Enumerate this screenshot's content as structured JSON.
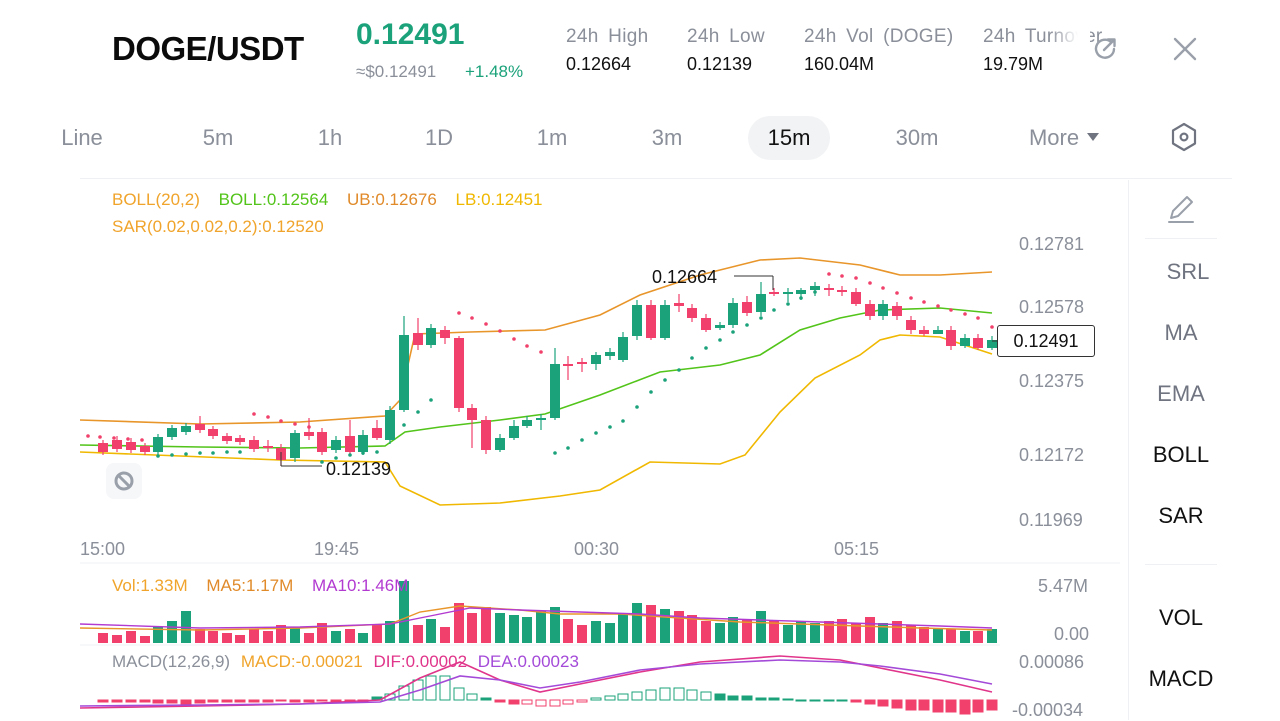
{
  "header": {
    "pair": "DOGE/USDT",
    "last_price": "0.12491",
    "fiat_price": "≈$0.12491",
    "change_pct": "+1.48%",
    "stats": [
      {
        "label": "24h  High",
        "value": "0.12664"
      },
      {
        "label": "24h  Low",
        "value": "0.12139"
      },
      {
        "label": "24h  Vol (DOGE)",
        "value": "160.04M"
      },
      {
        "label": "24h  Turnover",
        "value": "19.79M"
      }
    ],
    "share_icon": "share-icon",
    "close_icon": "close-icon"
  },
  "tabs": {
    "items": [
      "Line",
      "5m",
      "1h",
      "1D",
      "1m",
      "3m",
      "15m",
      "30m",
      "More"
    ],
    "active": "15m",
    "settings_icon": "hexagon-settings-icon"
  },
  "legend": {
    "boll_name": "BOLL(20,2)",
    "boll_mid": "BOLL:0.12564",
    "boll_ub": "UB:0.12676",
    "boll_lb": "LB:0.12451",
    "sar": "SAR(0.02,0.02,0.2):0.12520",
    "vol": "Vol:1.33M",
    "ma5": "MA5:1.17M",
    "ma10": "MA10:1.46M",
    "macd_name": "MACD(12,26,9)",
    "macd": "MACD:-0.00021",
    "dif": "DIF:0.00002",
    "dea": "DEA:0.00023"
  },
  "price_axis": [
    "0.12781",
    "0.12578",
    "0.12375",
    "0.12172",
    "0.11969"
  ],
  "volume_axis": [
    "5.47M",
    "0.00"
  ],
  "macd_axis": [
    "0.00086",
    "-0.00034"
  ],
  "time_axis": [
    "15:00",
    "19:45",
    "00:30",
    "05:15"
  ],
  "markers": {
    "high": "0.12664",
    "low": "0.12139",
    "current": "0.12491"
  },
  "side_panel": {
    "draw_icon": "pencil-icon",
    "items": [
      "SRL",
      "MA",
      "EMA",
      "BOLL",
      "SAR",
      "VOL",
      "MACD"
    ],
    "active": [
      "BOLL",
      "SAR",
      "VOL",
      "MACD"
    ]
  },
  "colors": {
    "up": "#1ba27a",
    "down": "#f0406b",
    "boll_mid": "#52c41a",
    "boll_band": "#f0a42b",
    "sar": "#f0406b",
    "ma10": "#b23ad1",
    "dif": "#e0358a",
    "dea": "#a44ad8"
  },
  "chart_data": {
    "type": "candlestick",
    "interval": "15m",
    "price_range": [
      0.11969,
      0.12781
    ],
    "last_close": 0.12491,
    "high": 0.12664,
    "low": 0.12139,
    "indicators": [
      "BOLL(20,2)",
      "SAR(0.02,0.02,0.2)",
      "VOL",
      "MACD(12,26,9)"
    ]
  }
}
